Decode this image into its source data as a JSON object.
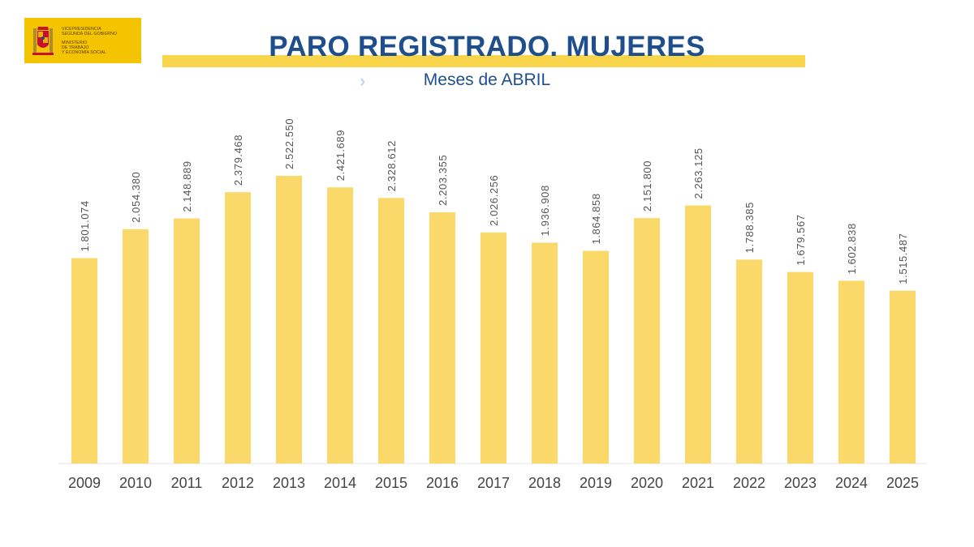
{
  "logo": {
    "icon": "coat-of-arms-icon",
    "lines_top": [
      "Vicepresidencia",
      "Segunda del Gobierno"
    ],
    "lines_bottom": [
      "Ministerio",
      "de Trabajo",
      "y Economía Social"
    ]
  },
  "header": {
    "title": "PARO REGISTRADO. MUJERES",
    "subtitle": "Meses de ABRIL",
    "chevron_icon": "chevron-right-icon"
  },
  "colors": {
    "bar": "#fad86a",
    "title": "#1f4e8c",
    "label": "#555555",
    "tick": "#444444"
  },
  "chart_data": {
    "type": "bar",
    "title": "PARO REGISTRADO. MUJERES",
    "subtitle": "Meses de ABRIL",
    "categories": [
      "2009",
      "2010",
      "2011",
      "2012",
      "2013",
      "2014",
      "2015",
      "2016",
      "2017",
      "2018",
      "2019",
      "2020",
      "2021",
      "2022",
      "2023",
      "2024",
      "2025"
    ],
    "values": [
      1801074,
      2054380,
      2148889,
      2379468,
      2522550,
      2421689,
      2328612,
      2203355,
      2026256,
      1936908,
      1864858,
      2151800,
      2263125,
      1788385,
      1679567,
      1602838,
      1515487
    ],
    "value_labels": [
      "1.801.074",
      "2.054.380",
      "2.148.889",
      "2.379.468",
      "2.522.550",
      "2.421.689",
      "2.328.612",
      "2.203.355",
      "2.026.256",
      "1.936.908",
      "1.864.858",
      "2.151.800",
      "2.263.125",
      "1.788.385",
      "1.679.567",
      "1.602.838",
      "1.515.487"
    ],
    "xlabel": "",
    "ylabel": "",
    "ylim": [
      0,
      2522550
    ],
    "grid": false,
    "legend": "none"
  }
}
